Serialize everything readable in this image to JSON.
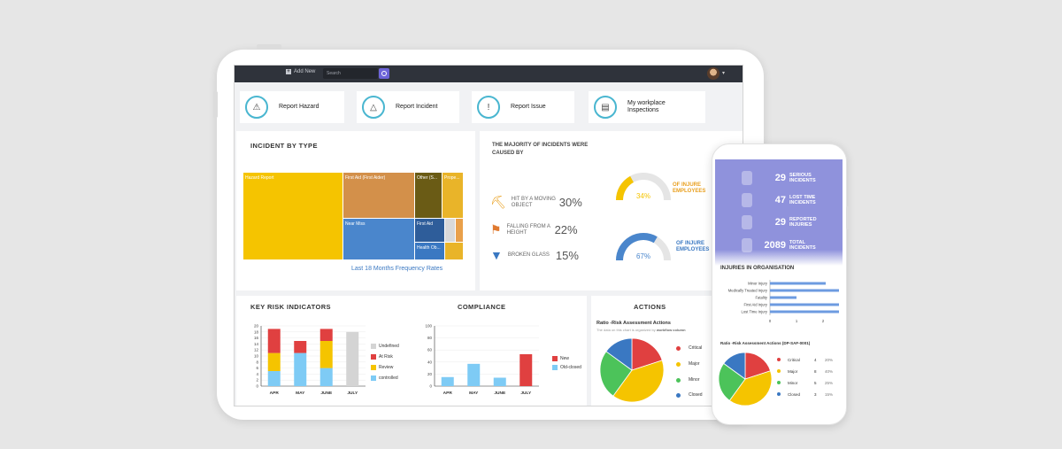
{
  "topbar": {
    "add_new": "Add New",
    "search_placeholder": "Search"
  },
  "quick_actions": [
    {
      "label": "Report Hazard",
      "icon": "hazard-icon"
    },
    {
      "label": "Report Incident",
      "icon": "warning-icon"
    },
    {
      "label": "Report Issue",
      "icon": "alert-icon"
    },
    {
      "label_line1": "My workplace",
      "label_line2": "Inspections",
      "icon": "clipboard-icon"
    }
  ],
  "incident_by_type": {
    "title": "INCIDENT BY TYPE",
    "footer_link": "Last 18 Months Frequency Rates",
    "chart_data": {
      "type": "treemap",
      "items": [
        {
          "label": "Hazard Report",
          "color": "#f5c400"
        },
        {
          "label": "First Aid (First Aider)",
          "color": "#d3904a"
        },
        {
          "label": "Other (S...",
          "color": "#6a5b15"
        },
        {
          "label": "Prope...",
          "color": "#e9b429"
        },
        {
          "label": "Near Miss",
          "color": "#4a86cc"
        },
        {
          "label": "First Aid",
          "color": "#2e5d9a"
        },
        {
          "label": "Health Ob...",
          "color": "#3a78c2"
        }
      ]
    }
  },
  "majority": {
    "title_line1": "THE MAJORITY OF INCIDENTS WERE",
    "title_line2": "CAUSED BY",
    "causes": [
      {
        "line1": "HIT BY A MOVING",
        "line2": "OBJECT",
        "pct": "30%",
        "icon": "crane-icon"
      },
      {
        "line1": "FALLING FROM A",
        "line2": "HEIGHT",
        "pct": "22%",
        "icon": "ladder-fall-icon"
      },
      {
        "line1": "BROKEN GLASS",
        "line2": "",
        "pct": "15%",
        "icon": "glass-icon"
      }
    ],
    "gauges": [
      {
        "value": "34%",
        "fraction": 0.34,
        "caption_line1": "OF INJURE",
        "caption_line2": "EMPLOYEES",
        "color": "#f5c400"
      },
      {
        "value": "67%",
        "fraction": 0.67,
        "caption_line1": "OF INJURE",
        "caption_line2": "EMPLOYEES",
        "color": "#4a86cc"
      }
    ]
  },
  "kri": {
    "title": "KEY RISK INDICATORS",
    "chart_data": {
      "type": "bar",
      "stacked": true,
      "categories": [
        "APR",
        "MAY",
        "JUNE",
        "JULY"
      ],
      "ylim": [
        0,
        20
      ],
      "yticks": [
        0,
        2,
        4,
        6,
        8,
        10,
        12,
        14,
        16,
        18,
        20
      ],
      "series": [
        {
          "name": "controlled",
          "color": "#7ecbf5",
          "values": [
            5,
            11,
            6,
            0
          ]
        },
        {
          "name": "Review",
          "color": "#f5c400",
          "values": [
            6,
            0,
            9,
            0
          ]
        },
        {
          "name": "At Risk",
          "color": "#e04040",
          "values": [
            8,
            4,
            4,
            0
          ]
        },
        {
          "name": "Undefined",
          "color": "#d4d4d4",
          "values": [
            0,
            0,
            0,
            18
          ]
        }
      ]
    }
  },
  "compliance": {
    "title": "COMPLIANCE",
    "chart_data": {
      "type": "bar",
      "categories": [
        "APR",
        "MAY",
        "JUNE",
        "JULY"
      ],
      "ylim": [
        0,
        100
      ],
      "yticks": [
        0,
        20,
        40,
        60,
        80,
        100
      ],
      "series": [
        {
          "name": "New",
          "color": "#e04040",
          "values": [
            0,
            0,
            0,
            53
          ]
        },
        {
          "name": "Old-closed",
          "color": "#7ecbf5",
          "values": [
            15,
            37,
            14,
            0
          ]
        }
      ]
    }
  },
  "actions": {
    "title": "ACTIONS",
    "subtitle": "Ratio -Risk Assessment Actions",
    "note": "The data on this chart is organized by",
    "note_strong": "workflow column",
    "chart_data": {
      "type": "pie",
      "slices": [
        {
          "label": "Critical",
          "color": "#e04040",
          "value": 20
        },
        {
          "label": "Major",
          "color": "#f5c400",
          "value": 40
        },
        {
          "label": "Minor",
          "color": "#4cc35a",
          "value": 25
        },
        {
          "label": "Closed",
          "color": "#3a78c2",
          "value": 15
        }
      ]
    }
  },
  "phone": {
    "stats": [
      {
        "num": "29",
        "line1": "SERIOUS",
        "line2": "INCIDENTS"
      },
      {
        "num": "47",
        "line1": "LOST TIME",
        "line2": "INCIDENTS"
      },
      {
        "num": "29",
        "line1": "REPORTED",
        "line2": "INJURIES"
      },
      {
        "num": "2089",
        "line1": "TOTAL",
        "line2": "INCIDENTS"
      }
    ],
    "injuries_title": "INJURIES IN ORGANISATION",
    "injuries_chart": {
      "type": "bar",
      "orientation": "horizontal",
      "xticks": [
        0,
        1,
        2
      ],
      "categories": [
        "Minor Injury",
        "Medically Treated Injury",
        "Fatality",
        "First Aid Injury",
        "Lost Time Injury"
      ],
      "values": [
        2.1,
        2.6,
        1.0,
        2.6,
        2.6
      ],
      "xlim": [
        0,
        2.6
      ]
    },
    "ratio_title": "Ratio -Risk Assessment Actions (DP-SAF-0001)",
    "ratio_chart": {
      "type": "pie",
      "slices": [
        {
          "label": "Critical",
          "value": 4,
          "pct": "20%",
          "color": "#e04040"
        },
        {
          "label": "Major",
          "value": 8,
          "pct": "40%",
          "color": "#f5c400"
        },
        {
          "label": "Minor",
          "value": 5,
          "pct": "25%",
          "color": "#4cc35a"
        },
        {
          "label": "Closed",
          "value": 3,
          "pct": "15%",
          "color": "#3a78c2"
        }
      ]
    }
  }
}
